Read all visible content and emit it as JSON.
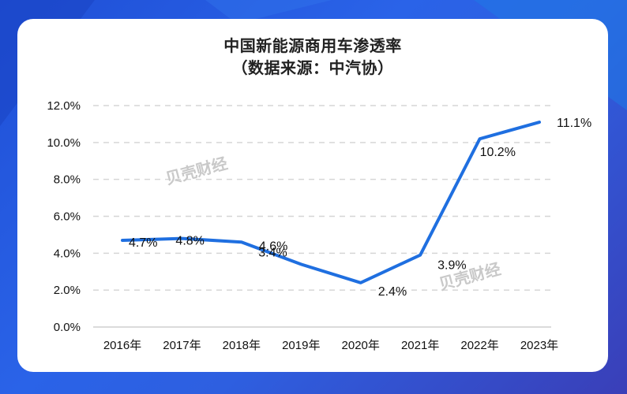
{
  "chart_data": {
    "type": "line",
    "title": "中国新能源商用车渗透率",
    "subtitle": "（数据来源：中汽协）",
    "categories": [
      "2016年",
      "2017年",
      "2018年",
      "2019年",
      "2020年",
      "2021年",
      "2022年",
      "2023年"
    ],
    "values": [
      4.7,
      4.8,
      4.6,
      3.4,
      2.4,
      3.9,
      10.2,
      11.1
    ],
    "data_labels": [
      "4.7%",
      "4.8%",
      "4.6%",
      "3.4%",
      "2.4%",
      "3.9%",
      "10.2%",
      "11.1%"
    ],
    "y_ticks": [
      "0.0%",
      "2.0%",
      "4.0%",
      "6.0%",
      "8.0%",
      "10.0%",
      "12.0%"
    ],
    "ylim": [
      0,
      12
    ],
    "grid": true,
    "line_color": "#1f6fe0",
    "watermark": "贝壳财经"
  }
}
